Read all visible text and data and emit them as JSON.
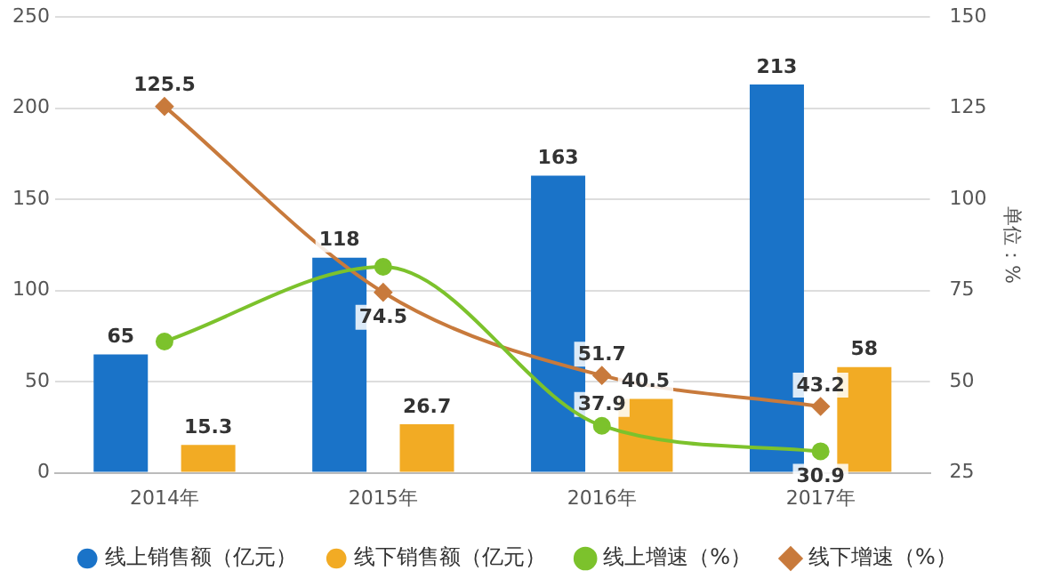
{
  "chart_data": {
    "type": "bar",
    "categories": [
      "2014年",
      "2015年",
      "2016年",
      "2017年"
    ],
    "series": [
      {
        "name": "线上销售额（亿元）",
        "color": "#1a73c8",
        "values": [
          65,
          118,
          163,
          213
        ],
        "value_labels": [
          "65",
          "118",
          "163",
          "213"
        ]
      },
      {
        "name": "线下销售额（亿元）",
        "color": "#f2ab24",
        "values": [
          15.3,
          26.7,
          40.5,
          58
        ],
        "value_labels": [
          "15.3",
          "26.7",
          "40.5",
          "58"
        ]
      },
      {
        "name": "线上增速（%）",
        "type": "line",
        "axis": "y2",
        "color": "#7cc22c",
        "marker": "circle",
        "values": [
          61,
          81.5,
          37.9,
          30.9
        ],
        "value_labels": [
          null,
          null,
          "37.9",
          "30.9"
        ]
      },
      {
        "name": "线下增速（%）",
        "type": "line",
        "axis": "y2",
        "color": "#c87a3c",
        "marker": "diamond",
        "values": [
          125.5,
          74.5,
          51.7,
          43.2
        ],
        "value_labels": [
          "125.5",
          "74.5",
          "51.7",
          "43.2"
        ]
      }
    ],
    "ylim": [
      0,
      250
    ],
    "yticks": [
      0,
      50,
      100,
      150,
      200,
      250
    ],
    "y2lim": [
      25,
      150
    ],
    "y2ticks": [
      25,
      50,
      75,
      100,
      125,
      150
    ],
    "y2label": "单位：%",
    "grid": "y",
    "legend": "bottom"
  }
}
